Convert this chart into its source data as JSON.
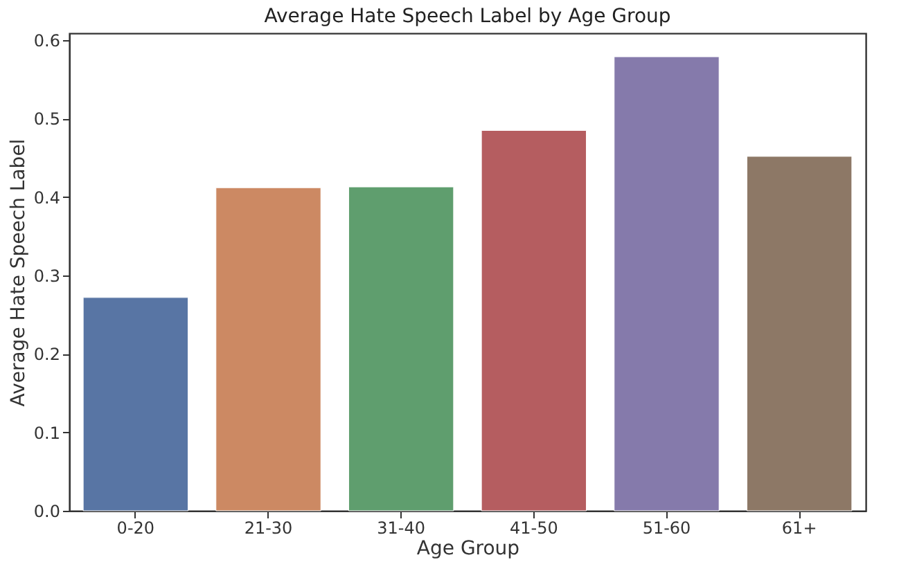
{
  "chart_data": {
    "type": "bar",
    "title": "Average Hate Speech Label by Age Group",
    "xlabel": "Age Group",
    "ylabel": "Average Hate Speech Label",
    "categories": [
      "0-20",
      "21-30",
      "31-40",
      "41-50",
      "51-60",
      "61+"
    ],
    "values": [
      0.272,
      0.412,
      0.413,
      0.485,
      0.579,
      0.452
    ],
    "colors": [
      "#5875a4",
      "#cc8963",
      "#5f9e6e",
      "#b55d60",
      "#857aab",
      "#8d7866"
    ],
    "ylim": [
      0,
      0.609
    ],
    "yticks": [
      {
        "value": 0,
        "label": "0.0"
      },
      0.1,
      0.2,
      0.3,
      0.4,
      0.5,
      0.6
    ],
    "grid": false
  }
}
